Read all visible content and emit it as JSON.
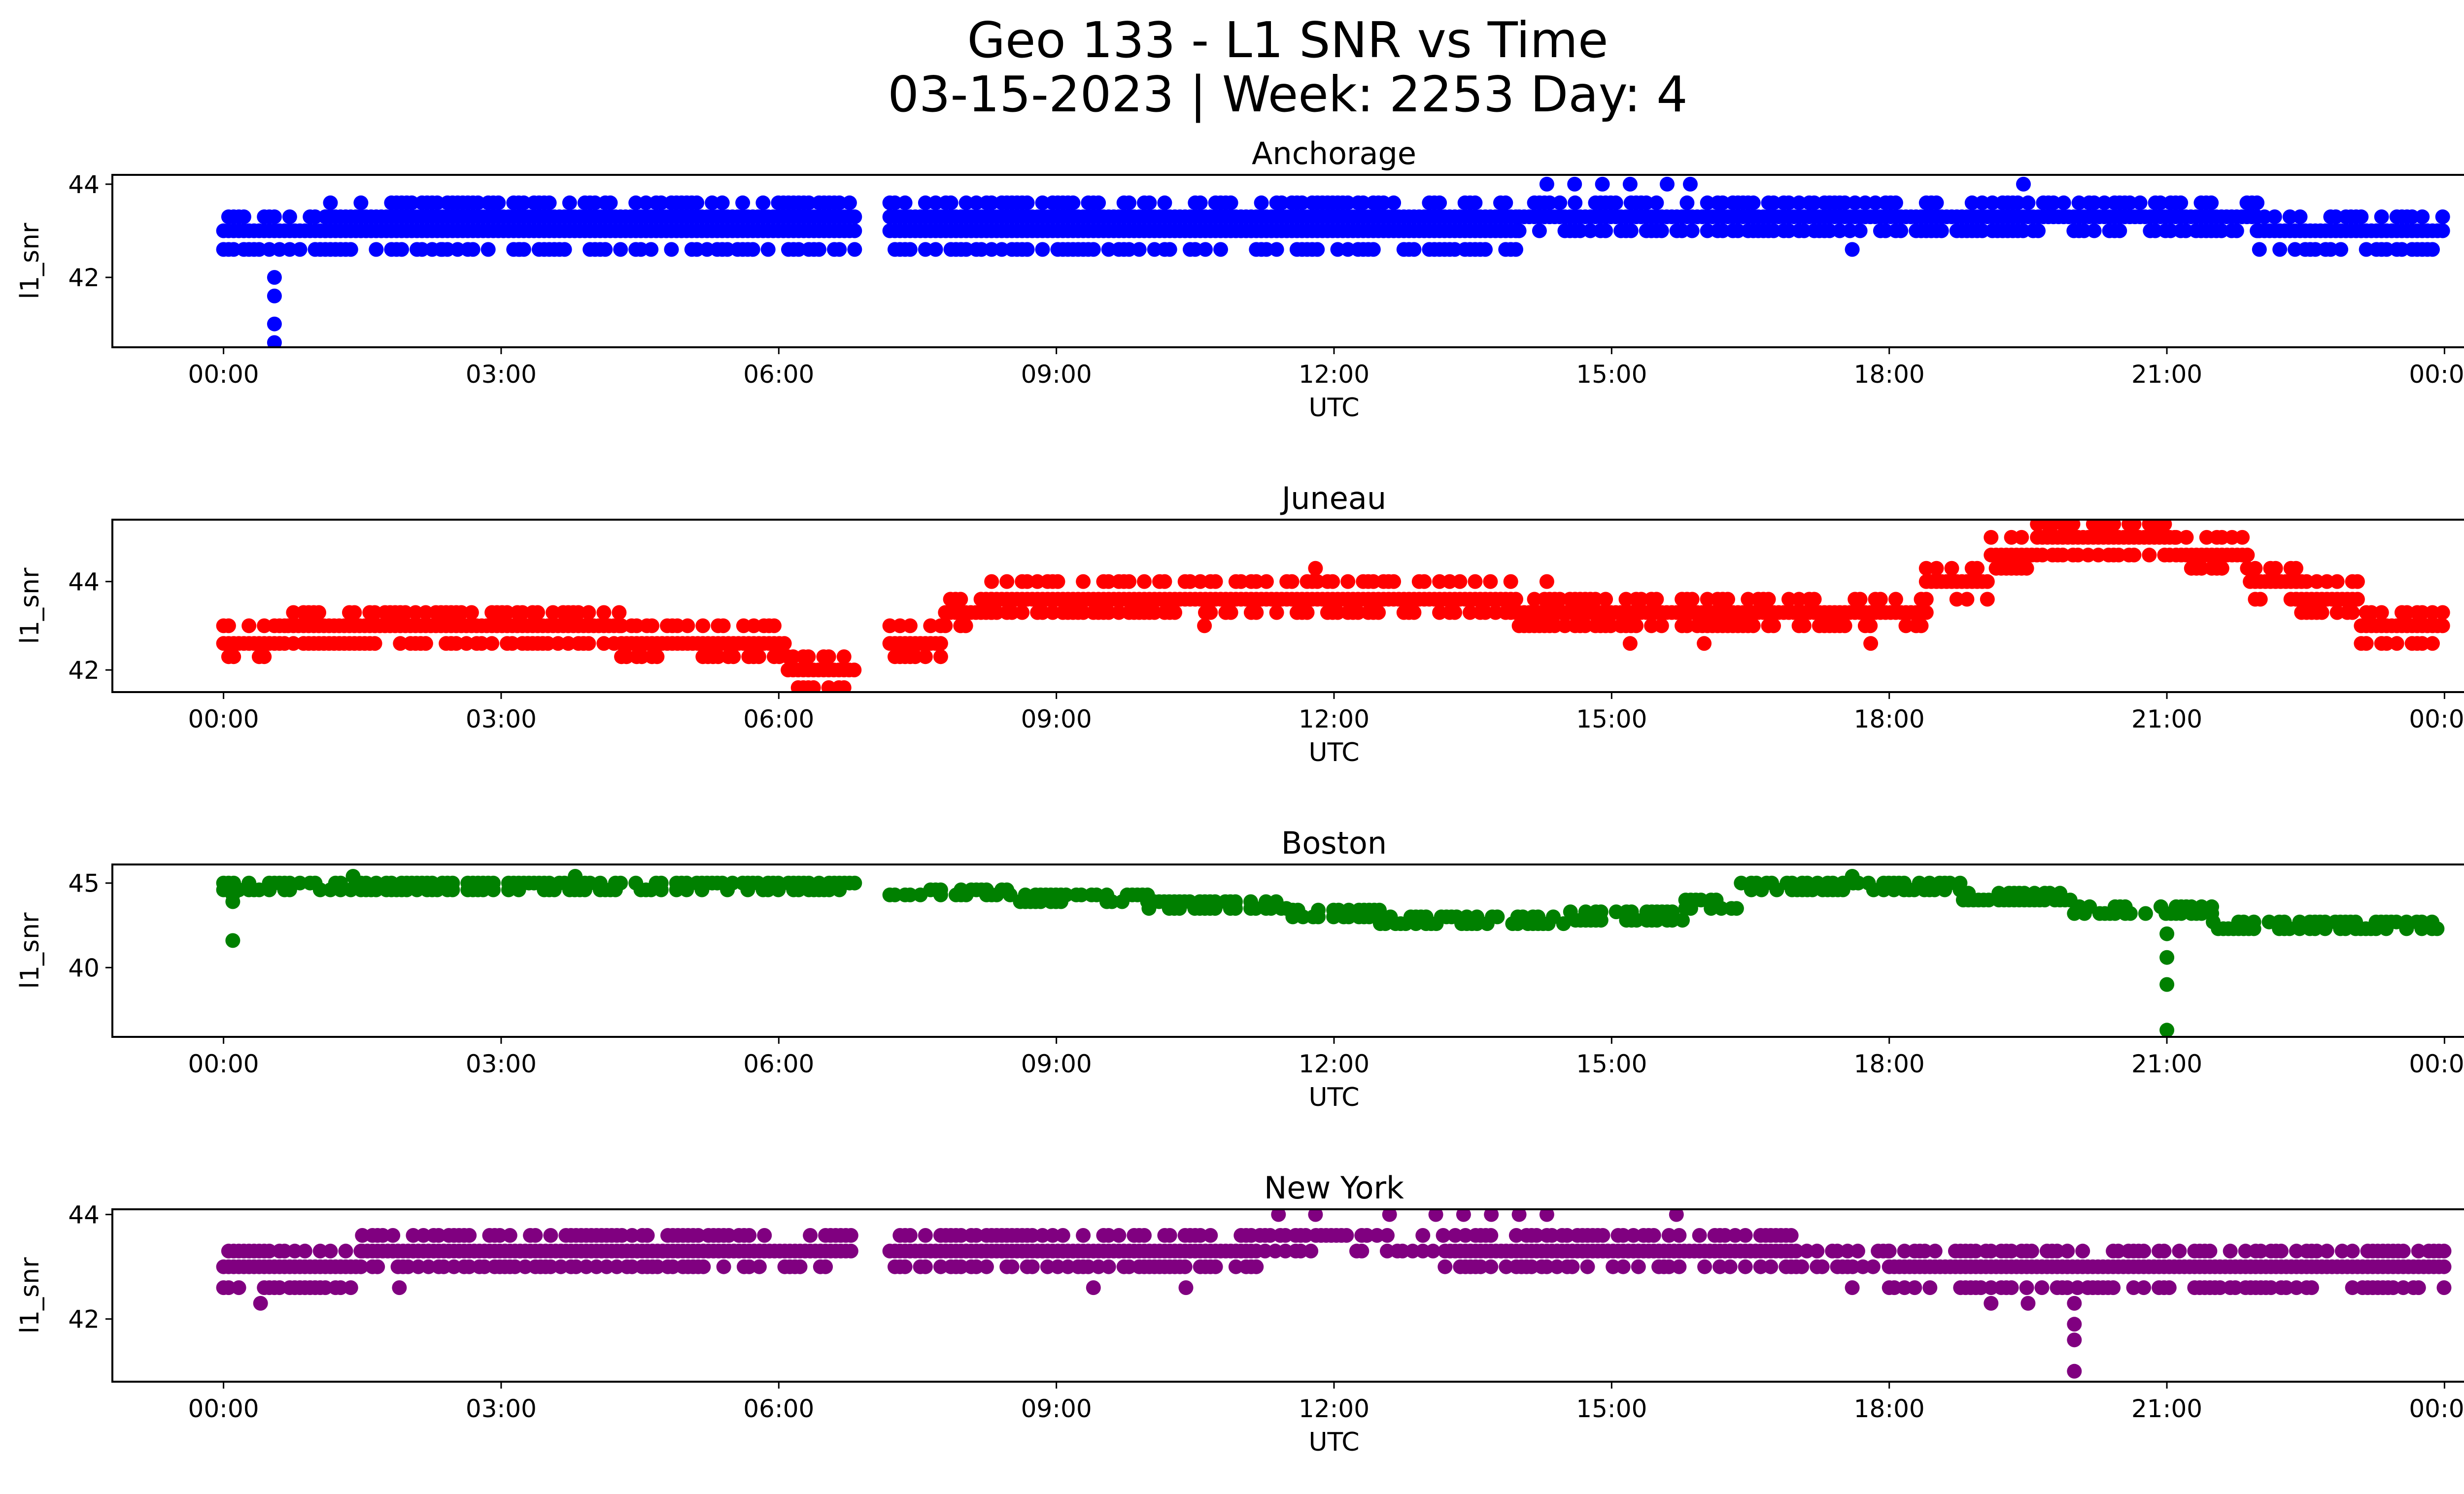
{
  "figure": {
    "title_line1": "Geo 133 - L1 SNR vs Time",
    "title_line2": "03-15-2023 | Week: 2253 Day: 4"
  },
  "chart_data": [
    {
      "type": "scatter",
      "title": "Anchorage",
      "xlabel": "UTC",
      "ylabel": "l1_snr",
      "color": "#0000ff",
      "xlim": [
        "00:00",
        "24:00"
      ],
      "ylim": [
        40.5,
        44.2
      ],
      "yticks": [
        42,
        44
      ],
      "xticks": [
        "00:00",
        "03:00",
        "06:00",
        "09:00",
        "12:00",
        "15:00",
        "18:00",
        "21:00",
        "00:00"
      ],
      "gaps": [
        [
          6.83,
          7.2
        ]
      ],
      "segments": [
        {
          "start": 0.0,
          "end": 1.1,
          "levels": [
            42.6,
            43.0,
            43.3
          ]
        },
        {
          "start": 1.1,
          "end": 6.83,
          "levels": [
            42.6,
            43.0,
            43.3,
            43.6
          ]
        },
        {
          "start": 7.2,
          "end": 14.0,
          "levels": [
            42.6,
            43.0,
            43.3,
            43.6
          ]
        },
        {
          "start": 14.0,
          "end": 22.0,
          "levels": [
            43.0,
            43.3,
            43.6
          ]
        },
        {
          "start": 22.0,
          "end": 24.0,
          "levels": [
            42.6,
            43.0,
            43.3
          ]
        }
      ],
      "outliers": [
        [
          0.55,
          42.0
        ],
        [
          0.55,
          41.6
        ],
        [
          0.55,
          41.0
        ],
        [
          0.55,
          40.6
        ],
        [
          2.35,
          42.6
        ],
        [
          3.2,
          42.6
        ],
        [
          14.3,
          44.0
        ],
        [
          14.6,
          44.0
        ],
        [
          14.9,
          44.0
        ],
        [
          15.2,
          44.0
        ],
        [
          15.6,
          44.0
        ],
        [
          15.85,
          44.0
        ],
        [
          19.45,
          44.0
        ],
        [
          17.6,
          42.6
        ]
      ]
    },
    {
      "type": "scatter",
      "title": "Juneau",
      "xlabel": "UTC",
      "ylabel": "l1_snr",
      "color": "#ff0000",
      "xlim": [
        "00:00",
        "24:00"
      ],
      "ylim": [
        41.5,
        45.4
      ],
      "yticks": [
        42,
        44
      ],
      "xticks": [
        "00:00",
        "03:00",
        "06:00",
        "09:00",
        "12:00",
        "15:00",
        "18:00",
        "21:00",
        "00:00"
      ],
      "gaps": [
        [
          6.83,
          7.2
        ]
      ],
      "segments": [
        {
          "start": 0.0,
          "end": 0.7,
          "levels": [
            42.3,
            42.6,
            43.0
          ]
        },
        {
          "start": 0.7,
          "end": 4.3,
          "levels": [
            42.6,
            43.0,
            43.3
          ]
        },
        {
          "start": 4.3,
          "end": 6.1,
          "levels": [
            42.3,
            42.6,
            43.0
          ]
        },
        {
          "start": 6.1,
          "end": 6.83,
          "levels": [
            41.6,
            42.0,
            42.3
          ]
        },
        {
          "start": 7.2,
          "end": 7.8,
          "levels": [
            42.3,
            42.6,
            43.0
          ]
        },
        {
          "start": 7.8,
          "end": 8.3,
          "levels": [
            43.0,
            43.3,
            43.6
          ]
        },
        {
          "start": 8.3,
          "end": 14.0,
          "levels": [
            43.3,
            43.6,
            44.0
          ]
        },
        {
          "start": 14.0,
          "end": 18.4,
          "levels": [
            43.0,
            43.3,
            43.6
          ]
        },
        {
          "start": 18.4,
          "end": 19.1,
          "levels": [
            43.6,
            44.0,
            44.3
          ]
        },
        {
          "start": 19.1,
          "end": 19.6,
          "levels": [
            44.3,
            44.6,
            45.0
          ]
        },
        {
          "start": 19.6,
          "end": 21.1,
          "levels": [
            44.6,
            45.0,
            45.3
          ]
        },
        {
          "start": 21.1,
          "end": 21.9,
          "levels": [
            44.3,
            44.6,
            45.0
          ]
        },
        {
          "start": 21.9,
          "end": 22.4,
          "levels": [
            43.6,
            44.0,
            44.3
          ]
        },
        {
          "start": 22.4,
          "end": 23.1,
          "levels": [
            43.3,
            43.6,
            44.0
          ]
        },
        {
          "start": 23.1,
          "end": 24.0,
          "levels": [
            42.6,
            43.0,
            43.3
          ]
        }
      ],
      "outliers": [
        [
          11.8,
          44.3
        ],
        [
          10.6,
          43.0
        ],
        [
          15.2,
          42.6
        ],
        [
          16.0,
          42.6
        ],
        [
          17.8,
          42.6
        ],
        [
          14.3,
          44.0
        ]
      ]
    },
    {
      "type": "scatter",
      "title": "Boston",
      "xlabel": "UTC",
      "ylabel": "l1_snr",
      "color": "#008000",
      "xlim": [
        "00:00",
        "24:00"
      ],
      "ylim": [
        35.9,
        46.1
      ],
      "yticks": [
        40,
        45
      ],
      "xticks": [
        "00:00",
        "03:00",
        "06:00",
        "09:00",
        "12:00",
        "15:00",
        "18:00",
        "21:00",
        "00:00"
      ],
      "gaps": [
        [
          6.83,
          7.2
        ]
      ],
      "segments": [
        {
          "start": 0.0,
          "end": 6.83,
          "levels": [
            44.6,
            45.0
          ]
        },
        {
          "start": 7.2,
          "end": 8.5,
          "levels": [
            44.3,
            44.6
          ]
        },
        {
          "start": 8.5,
          "end": 10.0,
          "levels": [
            43.9,
            44.3
          ]
        },
        {
          "start": 10.0,
          "end": 11.5,
          "levels": [
            43.5,
            43.9
          ]
        },
        {
          "start": 11.5,
          "end": 12.5,
          "levels": [
            43.0,
            43.4
          ]
        },
        {
          "start": 12.5,
          "end": 14.5,
          "levels": [
            42.6,
            43.0
          ]
        },
        {
          "start": 14.5,
          "end": 15.8,
          "levels": [
            42.8,
            43.3
          ]
        },
        {
          "start": 15.8,
          "end": 16.4,
          "levels": [
            43.5,
            44.0
          ]
        },
        {
          "start": 16.4,
          "end": 18.8,
          "levels": [
            44.6,
            45.0
          ]
        },
        {
          "start": 18.8,
          "end": 20.0,
          "levels": [
            44.0,
            44.4
          ]
        },
        {
          "start": 20.0,
          "end": 21.5,
          "levels": [
            43.2,
            43.6
          ]
        },
        {
          "start": 21.5,
          "end": 24.0,
          "levels": [
            42.3,
            42.7
          ]
        }
      ],
      "outliers": [
        [
          0.1,
          41.6
        ],
        [
          0.1,
          43.9
        ],
        [
          0.1,
          44.3
        ],
        [
          21.0,
          40.6
        ],
        [
          21.0,
          39.0
        ],
        [
          21.0,
          36.3
        ],
        [
          21.0,
          42.0
        ],
        [
          3.8,
          45.4
        ],
        [
          17.6,
          45.4
        ],
        [
          1.4,
          45.4
        ]
      ]
    },
    {
      "type": "scatter",
      "title": "New York",
      "xlabel": "UTC",
      "ylabel": "l1_snr",
      "color": "#800080",
      "xlim": [
        "00:00",
        "24:00"
      ],
      "ylim": [
        40.8,
        44.1
      ],
      "yticks": [
        42,
        44
      ],
      "xticks": [
        "00:00",
        "03:00",
        "06:00",
        "09:00",
        "12:00",
        "15:00",
        "18:00",
        "21:00",
        "00:00"
      ],
      "gaps": [
        [
          6.83,
          7.2
        ]
      ],
      "segments": [
        {
          "start": 0.0,
          "end": 1.5,
          "levels": [
            42.6,
            43.0,
            43.3
          ]
        },
        {
          "start": 1.5,
          "end": 6.83,
          "levels": [
            43.0,
            43.3,
            43.6
          ]
        },
        {
          "start": 7.2,
          "end": 11.2,
          "levels": [
            43.0,
            43.3,
            43.6
          ]
        },
        {
          "start": 11.2,
          "end": 13.2,
          "levels": [
            43.3,
            43.6
          ]
        },
        {
          "start": 13.2,
          "end": 17.0,
          "levels": [
            43.0,
            43.3,
            43.6
          ]
        },
        {
          "start": 17.0,
          "end": 18.0,
          "levels": [
            43.0,
            43.3
          ]
        },
        {
          "start": 18.0,
          "end": 24.0,
          "levels": [
            42.6,
            43.0,
            43.3
          ]
        }
      ],
      "outliers": [
        [
          0.4,
          42.3
        ],
        [
          1.9,
          42.6
        ],
        [
          9.4,
          42.6
        ],
        [
          10.4,
          42.6
        ],
        [
          11.4,
          44.0
        ],
        [
          11.8,
          44.0
        ],
        [
          12.6,
          44.0
        ],
        [
          13.1,
          44.0
        ],
        [
          13.4,
          44.0
        ],
        [
          13.7,
          44.0
        ],
        [
          14.0,
          44.0
        ],
        [
          14.3,
          44.0
        ],
        [
          15.7,
          44.0
        ],
        [
          19.1,
          42.3
        ],
        [
          19.5,
          42.3
        ],
        [
          20.0,
          42.3
        ],
        [
          20.0,
          41.9
        ],
        [
          20.0,
          41.6
        ],
        [
          20.0,
          41.0
        ],
        [
          17.6,
          42.6
        ]
      ]
    }
  ]
}
